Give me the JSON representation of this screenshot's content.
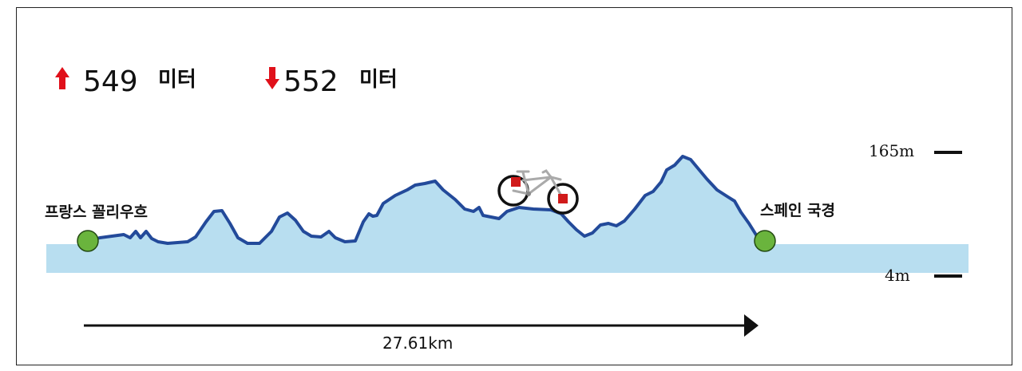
{
  "elevation": {
    "ascent_value": "549",
    "ascent_unit": "미터",
    "descent_value": "552",
    "descent_unit": "미터"
  },
  "route": {
    "start_label": "프랑스 꼴리우흐",
    "end_label": "스페인 국경",
    "distance": "27.61km"
  },
  "scale": {
    "max_label": "165m",
    "min_label": "4m"
  },
  "colors": {
    "profile_fill": "#b8def0",
    "profile_line": "#234a9a",
    "endpoint": "#6ab43d",
    "arrow_up": "#e0101a",
    "arrow_down": "#e0101a"
  },
  "icons": {
    "ascent": "arrow-up-icon",
    "descent": "arrow-down-icon",
    "bicycle": "bicycle-icon"
  }
}
